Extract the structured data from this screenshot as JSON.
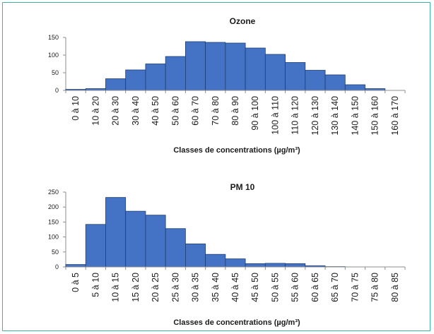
{
  "colors": {
    "bar": "#4472c4",
    "bar_edge": "#1f3f74",
    "frame": "#3fb6a8"
  },
  "chart_data": [
    {
      "type": "bar",
      "title": "Ozone",
      "xlabel": "Classes de concentrations (µg/m³)",
      "ylabel": "",
      "ylim": [
        0,
        150
      ],
      "yticks": [
        0,
        50,
        100,
        150
      ],
      "categories": [
        "0 à 10",
        "10 à 20",
        "20 à 30",
        "30 à 40",
        "40 à 50",
        "50 à 60",
        "60 à 70",
        "70 à 80",
        "80 à 90",
        "90 à 100",
        "100 à 110",
        "110 à 120",
        "120 à 130",
        "130 à 140",
        "140 à 150",
        "150 à 160",
        "160 à 170"
      ],
      "values": [
        3,
        5,
        33,
        58,
        75,
        96,
        138,
        136,
        134,
        120,
        102,
        79,
        57,
        44,
        16,
        5,
        0
      ]
    },
    {
      "type": "bar",
      "title": "PM 10",
      "xlabel": "Classes de concentrations (µg/m³)",
      "ylabel": "",
      "ylim": [
        0,
        250
      ],
      "yticks": [
        0,
        50,
        100,
        150,
        200,
        250
      ],
      "categories": [
        "0 à 5",
        "5 à 10",
        "10 à 15",
        "15 à 20",
        "20 à 25",
        "25 à 30",
        "30 à 35",
        "35 à 40",
        "40 à 45",
        "45 à 50",
        "50 à 55",
        "55 à 60",
        "60 à 65",
        "65 à 70",
        "70 à 75",
        "75 à 80",
        "80 à 85"
      ],
      "values": [
        8,
        142,
        232,
        186,
        173,
        128,
        77,
        42,
        27,
        11,
        12,
        11,
        4,
        1,
        0,
        0,
        0
      ]
    }
  ]
}
